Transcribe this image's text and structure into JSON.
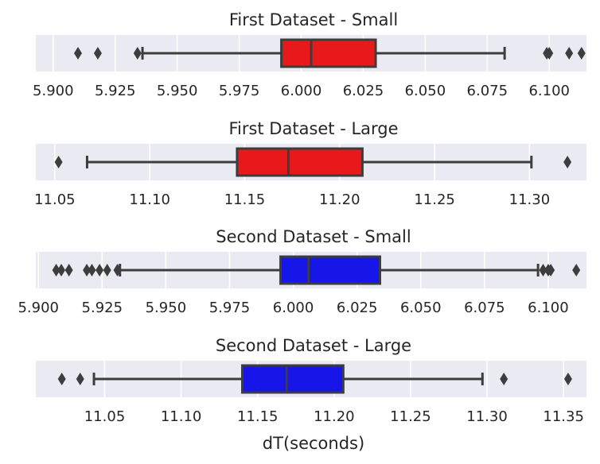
{
  "xlabel": "dT(seconds)",
  "chart_data": [
    {
      "type": "box",
      "title": "First Dataset - Small",
      "color": "#e8191a",
      "xlim": [
        5.893,
        6.115
      ],
      "ticks": [
        5.9,
        5.925,
        5.95,
        5.975,
        6.0,
        6.025,
        6.05,
        6.075,
        6.1
      ],
      "tick_labels": [
        "5.900",
        "5.925",
        "5.950",
        "5.975",
        "6.000",
        "6.025",
        "6.050",
        "6.075",
        "6.100"
      ],
      "show_tick_labels": true,
      "stats": {
        "whislo": 5.936,
        "q1": 5.992,
        "med": 6.004,
        "q3": 6.03,
        "whishi": 6.082
      },
      "fliers": [
        5.91,
        5.918,
        5.934,
        6.099,
        6.1,
        6.108,
        6.113
      ]
    },
    {
      "type": "box",
      "title": "First Dataset - Large",
      "color": "#e8191a",
      "xlim": [
        11.04,
        11.33
      ],
      "ticks": [
        11.05,
        11.1,
        11.15,
        11.2,
        11.25,
        11.3
      ],
      "tick_labels": [
        "11.05",
        "11.10",
        "11.15",
        "11.20",
        "11.25",
        "11.30"
      ],
      "show_tick_labels": true,
      "stats": {
        "whislo": 11.067,
        "q1": 11.146,
        "med": 11.173,
        "q3": 11.212,
        "whishi": 11.301
      },
      "fliers": [
        11.052,
        11.32
      ]
    },
    {
      "type": "box",
      "title": "Second Dataset - Small",
      "color": "#1616e8",
      "xlim": [
        5.899,
        6.115
      ],
      "ticks": [
        5.9,
        5.925,
        5.95,
        5.975,
        6.0,
        6.025,
        6.05,
        6.075,
        6.1
      ],
      "tick_labels": [
        "5.900",
        "5.925",
        "5.950",
        "5.975",
        "6.000",
        "6.025",
        "6.050",
        "6.075",
        "6.100"
      ],
      "show_tick_labels": true,
      "stats": {
        "whislo": 5.932,
        "q1": 5.995,
        "med": 6.006,
        "q3": 6.034,
        "whishi": 6.096
      },
      "fliers": [
        5.907,
        5.909,
        5.912,
        5.919,
        5.921,
        5.924,
        5.927,
        5.931,
        6.098,
        6.1,
        6.101,
        6.111
      ]
    },
    {
      "type": "box",
      "title": "Second Dataset - Large",
      "color": "#1616e8",
      "xlim": [
        11.005,
        11.365
      ],
      "ticks": [
        11.05,
        11.1,
        11.15,
        11.2,
        11.25,
        11.3,
        11.35
      ],
      "tick_labels": [
        "11.05",
        "11.10",
        "11.15",
        "11.20",
        "11.25",
        "11.30",
        "11.35"
      ],
      "show_tick_labels": true,
      "stats": {
        "whislo": 11.043,
        "q1": 11.14,
        "med": 11.169,
        "q3": 11.206,
        "whishi": 11.297
      },
      "fliers": [
        11.022,
        11.034,
        11.311,
        11.353
      ]
    }
  ]
}
